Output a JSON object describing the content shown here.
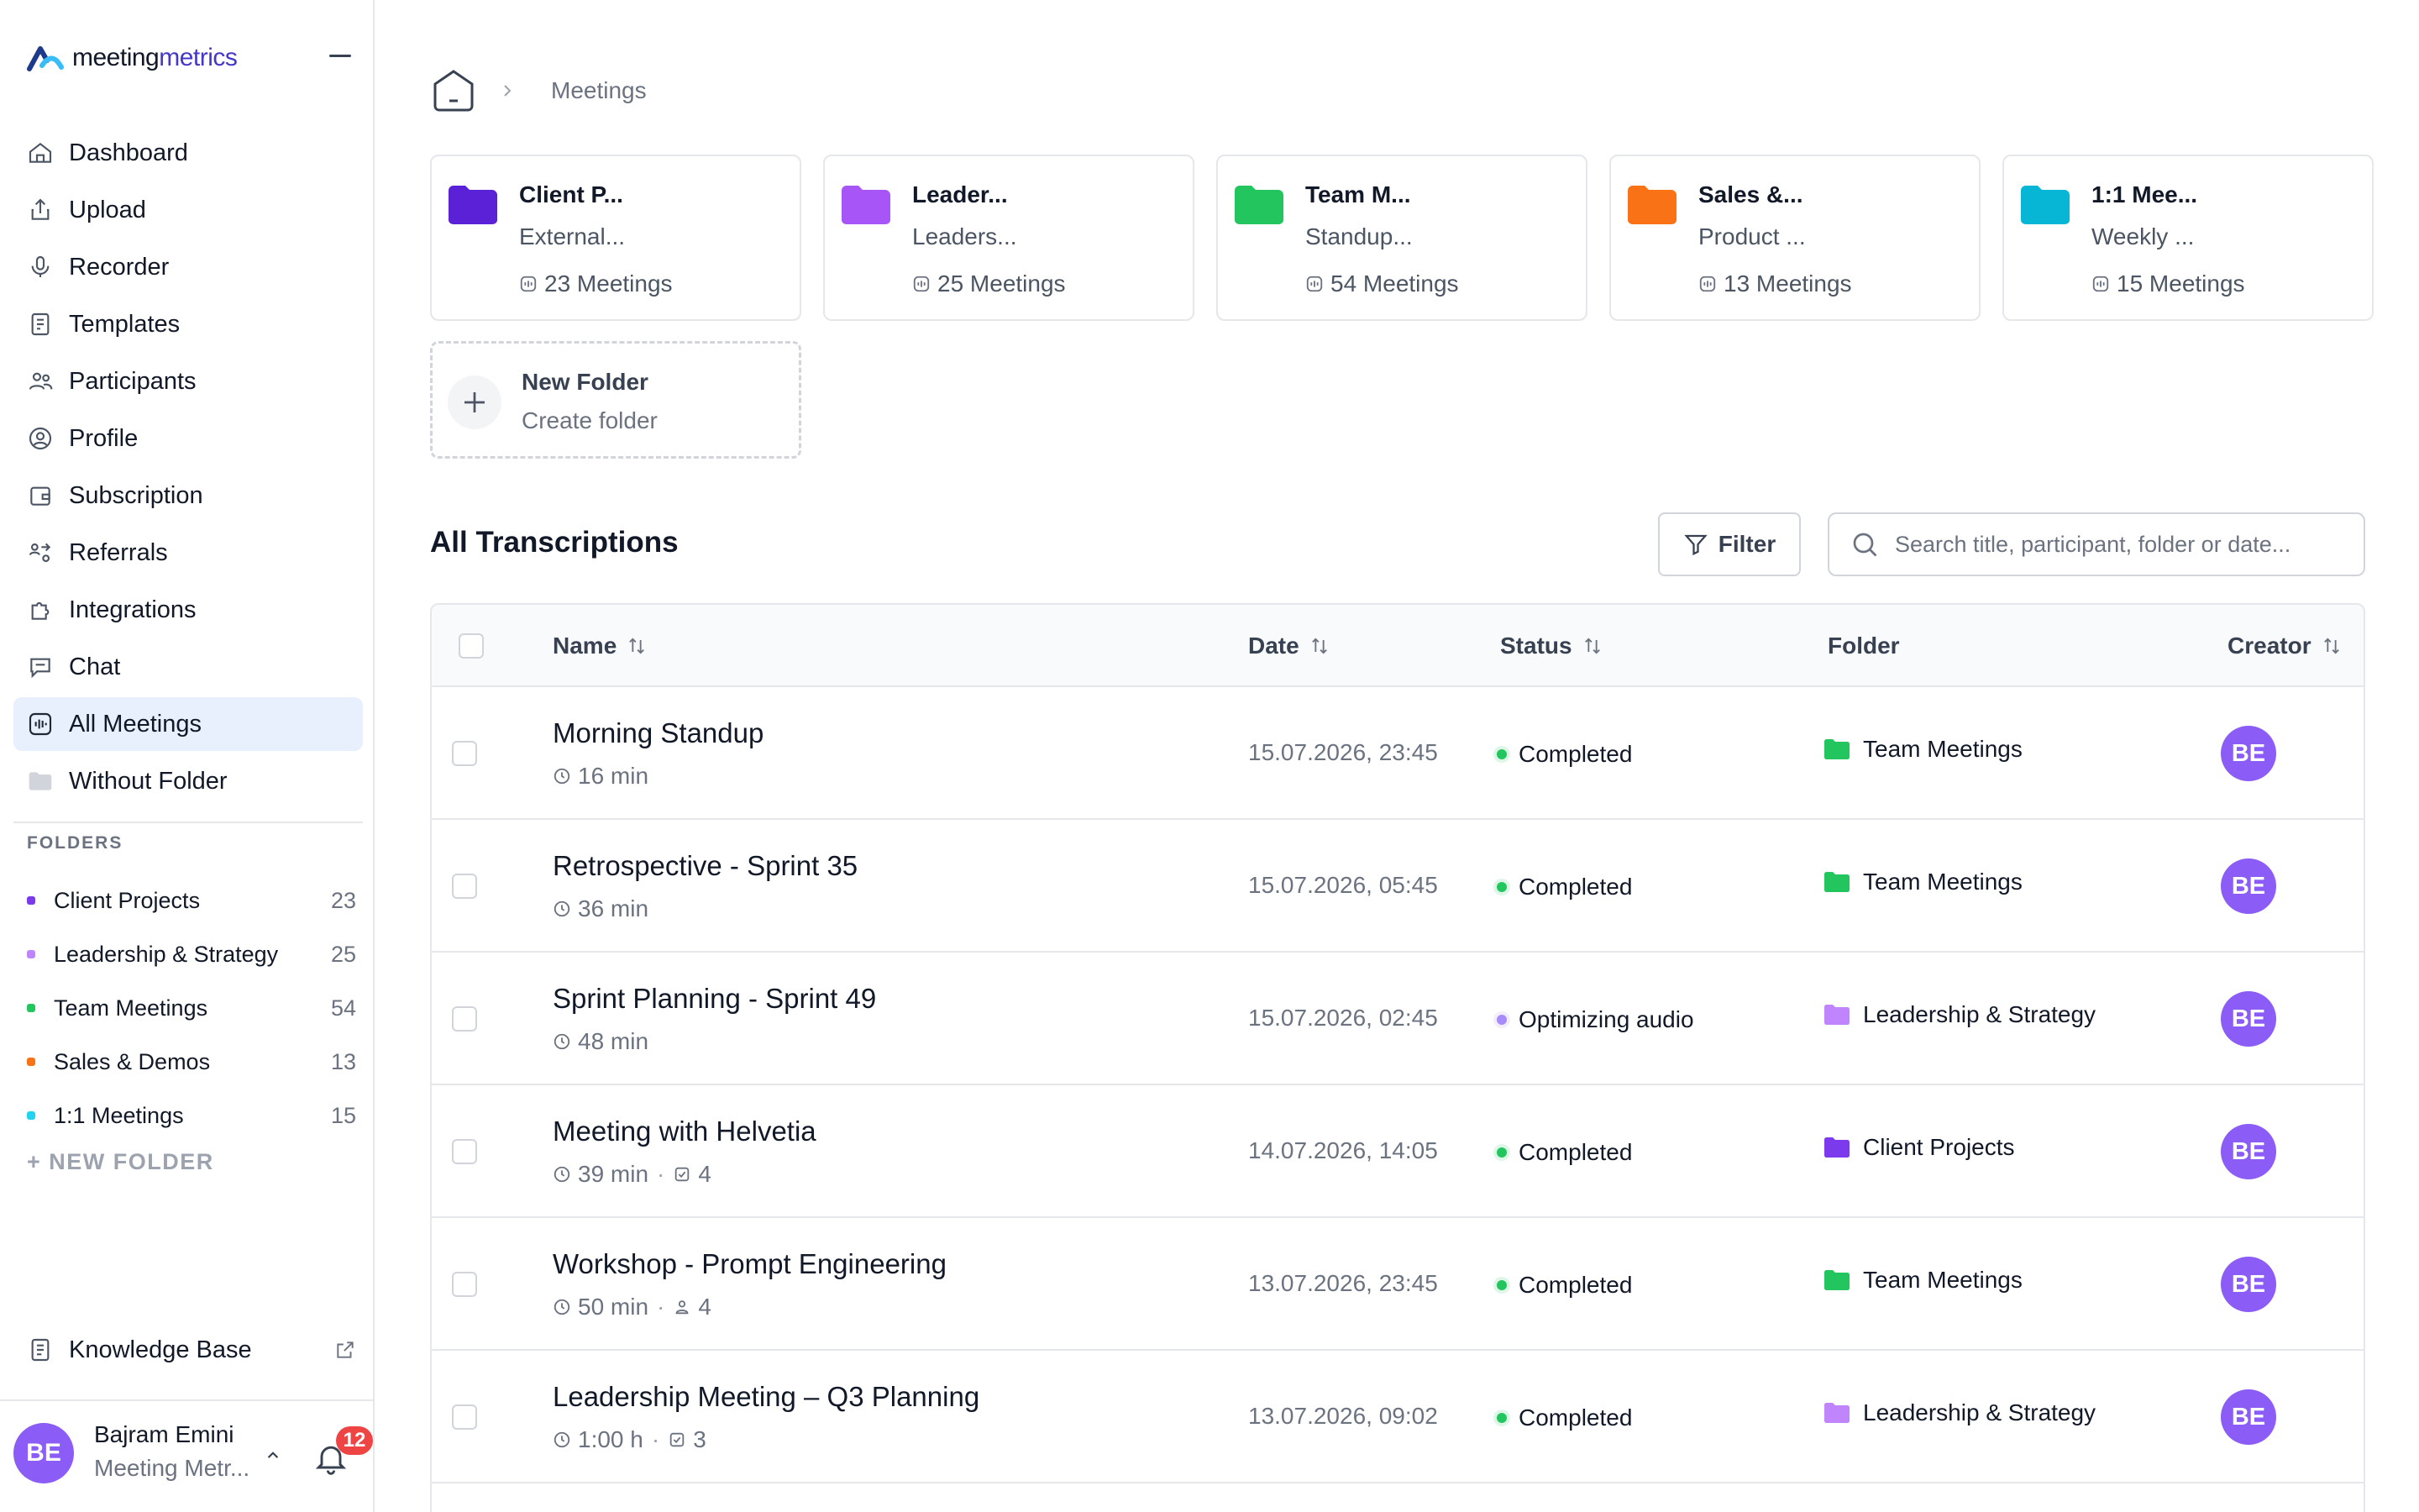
{
  "brand": {
    "name_part1": "meeting",
    "name_part2": "metrics",
    "accent": "#4338ca"
  },
  "nav": [
    {
      "label": "Dashboard",
      "icon": "home-icon"
    },
    {
      "label": "Upload",
      "icon": "upload-icon"
    },
    {
      "label": "Recorder",
      "icon": "microphone-icon"
    },
    {
      "label": "Templates",
      "icon": "template-icon"
    },
    {
      "label": "Participants",
      "icon": "users-icon"
    },
    {
      "label": "Profile",
      "icon": "profile-icon"
    },
    {
      "label": "Subscription",
      "icon": "wallet-icon"
    },
    {
      "label": "Referrals",
      "icon": "referral-icon"
    },
    {
      "label": "Integrations",
      "icon": "puzzle-icon"
    },
    {
      "label": "Chat",
      "icon": "chat-icon"
    },
    {
      "label": "All Meetings",
      "icon": "waveform-icon",
      "active": true
    },
    {
      "label": "Without Folder",
      "icon": "folder-icon"
    }
  ],
  "sidebar_folders": {
    "heading": "FOLDERS",
    "items": [
      {
        "name": "Client Projects",
        "count": "23",
        "color": "#7c3aed"
      },
      {
        "name": "Leadership & Strategy",
        "count": "25",
        "color": "#c084fc"
      },
      {
        "name": "Team Meetings",
        "count": "54",
        "color": "#22c55e"
      },
      {
        "name": "Sales & Demos",
        "count": "13",
        "color": "#f97316"
      },
      {
        "name": "1:1 Meetings",
        "count": "15",
        "color": "#22d3ee"
      }
    ],
    "new_folder_label": "+ NEW FOLDER"
  },
  "knowledge_base": {
    "label": "Knowledge Base"
  },
  "user": {
    "initials": "BE",
    "name": "Bajram Emini",
    "org": "Meeting Metr...",
    "notifications": "12"
  },
  "breadcrumb": {
    "current": "Meetings"
  },
  "folder_cards": [
    {
      "title": "Client P...",
      "subtitle": "External...",
      "count": "23 Meetings",
      "color": "#5b21d6"
    },
    {
      "title": "Leader...",
      "subtitle": "Leaders...",
      "count": "25 Meetings",
      "color": "#a855f7"
    },
    {
      "title": "Team M...",
      "subtitle": "Standup...",
      "count": "54 Meetings",
      "color": "#22c55e"
    },
    {
      "title": "Sales &...",
      "subtitle": "Product ...",
      "count": "13 Meetings",
      "color": "#f97316"
    },
    {
      "title": "1:1 Mee...",
      "subtitle": "Weekly ...",
      "count": "15 Meetings",
      "color": "#06b6d4"
    }
  ],
  "new_folder_card": {
    "title": "New Folder",
    "subtitle": "Create folder"
  },
  "transcriptions": {
    "title": "All Transcriptions",
    "filter_label": "Filter",
    "search_placeholder": "Search title, participant, folder or date...",
    "columns": {
      "name": "Name",
      "date": "Date",
      "status": "Status",
      "folder": "Folder",
      "creator": "Creator"
    },
    "rows": [
      {
        "title": "Morning Standup",
        "duration": "16 min",
        "extra": "",
        "extra_icon": "",
        "date": "15.07.2026, 23:45",
        "status": "Completed",
        "status_color": "#22c55e",
        "folder": "Team Meetings",
        "folder_color": "#22c55e",
        "creator": "BE"
      },
      {
        "title": "Retrospective - Sprint 35",
        "duration": "36 min",
        "extra": "",
        "extra_icon": "",
        "date": "15.07.2026, 05:45",
        "status": "Completed",
        "status_color": "#22c55e",
        "folder": "Team Meetings",
        "folder_color": "#22c55e",
        "creator": "BE"
      },
      {
        "title": "Sprint Planning - Sprint 49",
        "duration": "48 min",
        "extra": "",
        "extra_icon": "",
        "date": "15.07.2026, 02:45",
        "status": "Optimizing audio",
        "status_color": "#a78bfa",
        "folder": "Leadership & Strategy",
        "folder_color": "#c084fc",
        "creator": "BE"
      },
      {
        "title": "Meeting with Helvetia",
        "duration": "39 min",
        "extra": "4",
        "extra_icon": "task-icon",
        "date": "14.07.2026, 14:05",
        "status": "Completed",
        "status_color": "#22c55e",
        "folder": "Client Projects",
        "folder_color": "#7c3aed",
        "creator": "BE"
      },
      {
        "title": "Workshop - Prompt Engineering",
        "duration": "50 min",
        "extra": "4",
        "extra_icon": "participants-icon",
        "date": "13.07.2026, 23:45",
        "status": "Completed",
        "status_color": "#22c55e",
        "folder": "Team Meetings",
        "folder_color": "#22c55e",
        "creator": "BE"
      },
      {
        "title": "Leadership Meeting – Q3 Planning",
        "duration": "1:00 h",
        "extra": "3",
        "extra_icon": "task-icon",
        "date": "13.07.2026, 09:02",
        "status": "Completed",
        "status_color": "#22c55e",
        "folder": "Leadership & Strategy",
        "folder_color": "#c084fc",
        "creator": "BE"
      }
    ]
  }
}
